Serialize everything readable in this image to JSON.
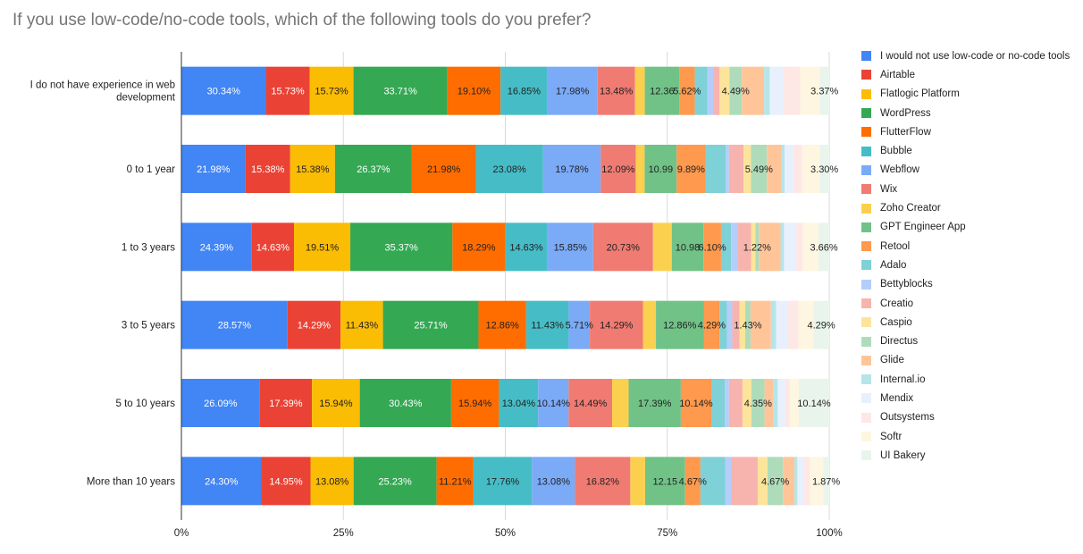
{
  "chart_data": {
    "type": "bar",
    "orientation": "horizontal",
    "stacked": "percent",
    "title": "If you use low-code/no-code tools, which of the following tools do you prefer?",
    "xlabel": "",
    "ylabel": "",
    "xlim": [
      0,
      100
    ],
    "x_ticks": [
      "0%",
      "25%",
      "50%",
      "75%",
      "100%"
    ],
    "legend_position": "right",
    "gridlines": true,
    "categories": [
      "I do not have experience in web development",
      "0 to 1 year",
      "1 to 3 years",
      "3 to 5 years",
      "5 to 10 years",
      "More than 10 years"
    ],
    "series": [
      {
        "name": "I would not use low-code or no-code tools",
        "color": "#4285F4",
        "values": [
          30.34,
          21.98,
          24.39,
          28.57,
          26.09,
          24.3
        ],
        "labels": [
          "30.34%",
          "21.98%",
          "24.39%",
          "28.57%",
          "26.09%",
          "24.30%"
        ]
      },
      {
        "name": "Airtable",
        "color": "#EA4335",
        "values": [
          15.73,
          15.38,
          14.63,
          14.29,
          17.39,
          14.95
        ],
        "labels": [
          "15.73%",
          "15.38%",
          "14.63%",
          "14.29%",
          "17.39%",
          "14.95%"
        ]
      },
      {
        "name": "Flatlogic Platform",
        "color": "#FBBC04",
        "values": [
          15.73,
          15.38,
          19.51,
          11.43,
          15.94,
          13.08
        ],
        "labels": [
          "15.73%",
          "15.38%",
          "19.51%",
          "11.43%",
          "15.94%",
          "13.08%"
        ]
      },
      {
        "name": "WordPress",
        "color": "#34A853",
        "values": [
          33.71,
          26.37,
          35.37,
          25.71,
          30.43,
          25.23
        ],
        "labels": [
          "33.71%",
          "26.37%",
          "35.37%",
          "25.71%",
          "30.43%",
          "25.23%"
        ]
      },
      {
        "name": "FlutterFlow",
        "color": "#FF6D01",
        "values": [
          19.1,
          21.98,
          18.29,
          12.86,
          15.94,
          11.21
        ],
        "labels": [
          "19.10%",
          "21.98%",
          "18.29%",
          "12.86%",
          "15.94%",
          "11.21%"
        ]
      },
      {
        "name": "Bubble",
        "color": "#46BDC6",
        "values": [
          16.85,
          23.08,
          14.63,
          11.43,
          13.04,
          17.76
        ],
        "labels": [
          "16.85%",
          "23.08%",
          "14.63%",
          "11.43%",
          "13.04%",
          "17.76%"
        ]
      },
      {
        "name": "Webflow",
        "color": "#7BAAF7",
        "values": [
          17.98,
          19.78,
          15.85,
          5.71,
          10.14,
          13.08
        ],
        "labels": [
          "17.98%",
          "19.78%",
          "15.85%",
          "5.71%",
          "10.14%",
          "13.08%"
        ]
      },
      {
        "name": "Wix",
        "color": "#F07B72",
        "values": [
          13.48,
          12.09,
          20.73,
          14.29,
          14.49,
          16.82
        ],
        "labels": [
          "13.48%",
          "12.09%",
          "20.73%",
          "14.29%",
          "14.49%",
          "16.82%"
        ]
      },
      {
        "name": "Zoho Creator",
        "color": "#FCD04F",
        "values": [
          3.5,
          3.0,
          6.5,
          3.5,
          5.5,
          4.5
        ],
        "labels": [
          "",
          "",
          "",
          "",
          "",
          ""
        ]
      },
      {
        "name": "GPT Engineer App",
        "color": "#71C287",
        "values": [
          12.36,
          10.99,
          10.98,
          12.86,
          17.39,
          12.15
        ],
        "labels": [
          "12.36",
          "10.99",
          "10.98",
          "12.86%",
          "17.39%",
          "12.15"
        ]
      },
      {
        "name": "Retool",
        "color": "#FF994D",
        "values": [
          5.62,
          9.89,
          6.1,
          4.29,
          10.14,
          4.67
        ],
        "labels": [
          "5.62%",
          "9.89%",
          "6.10%",
          "4.29%",
          "10.14%",
          "4.67%"
        ]
      },
      {
        "name": "Adalo",
        "color": "#7ED1D7",
        "values": [
          4.5,
          7.0,
          3.5,
          2.0,
          4.5,
          7.5
        ],
        "labels": [
          "",
          "",
          "",
          "",
          "",
          ""
        ]
      },
      {
        "name": "Bettyblocks",
        "color": "#B3CEFB",
        "values": [
          2.2,
          1.1,
          2.4,
          1.4,
          1.4,
          1.9
        ],
        "labels": [
          "",
          "",
          "",
          "",
          "",
          ""
        ]
      },
      {
        "name": "Creatio",
        "color": "#F7B4AE",
        "values": [
          2.2,
          5.0,
          4.5,
          2.0,
          4.5,
          8.0
        ],
        "labels": [
          "",
          "",
          "",
          "",
          "",
          ""
        ]
      },
      {
        "name": "Caspio",
        "color": "#FDE49B",
        "values": [
          3.5,
          2.5,
          1.5,
          1.5,
          3.0,
          3.0
        ],
        "labels": [
          "",
          "",
          "",
          "",
          "",
          ""
        ]
      },
      {
        "name": "Directus",
        "color": "#AEDCBA",
        "values": [
          4.49,
          5.49,
          1.22,
          1.43,
          4.35,
          4.67
        ],
        "labels": [
          "4.49%",
          "5.49%",
          "1.22%",
          "1.43%",
          "4.35%",
          "4.67%"
        ]
      },
      {
        "name": "Glide",
        "color": "#FFC599",
        "values": [
          8.0,
          5.0,
          7.5,
          5.5,
          3.0,
          3.5
        ],
        "labels": [
          "",
          "",
          "",
          "",
          "",
          ""
        ]
      },
      {
        "name": "Internal.io",
        "color": "#B5E5E8",
        "values": [
          2.0,
          1.1,
          1.2,
          1.4,
          1.4,
          0.9
        ],
        "labels": [
          "",
          "",
          "",
          "",
          "",
          ""
        ]
      },
      {
        "name": "Mendix",
        "color": "#E8F0FE",
        "values": [
          5.0,
          3.0,
          4.0,
          3.0,
          2.5,
          1.9
        ],
        "labels": [
          "",
          "",
          "",
          "",
          "",
          ""
        ]
      },
      {
        "name": "Outsystems",
        "color": "#FDE8E6",
        "values": [
          6.0,
          3.0,
          2.5,
          3.0,
          1.5,
          1.9
        ],
        "labels": [
          "",
          "",
          "",
          "",
          "",
          ""
        ]
      },
      {
        "name": "Softr",
        "color": "#FEF6E0",
        "values": [
          7.0,
          6.0,
          5.5,
          4.0,
          3.0,
          4.0
        ],
        "labels": [
          "",
          "",
          "",
          "",
          "",
          ""
        ]
      },
      {
        "name": "UI Bakery",
        "color": "#E9F5EC",
        "values": [
          3.37,
          3.3,
          3.66,
          4.29,
          10.14,
          1.87
        ],
        "labels": [
          "3.37%",
          "3.30%",
          "3.66%",
          "4.29%",
          "10.14%",
          "1.87%"
        ]
      }
    ]
  }
}
